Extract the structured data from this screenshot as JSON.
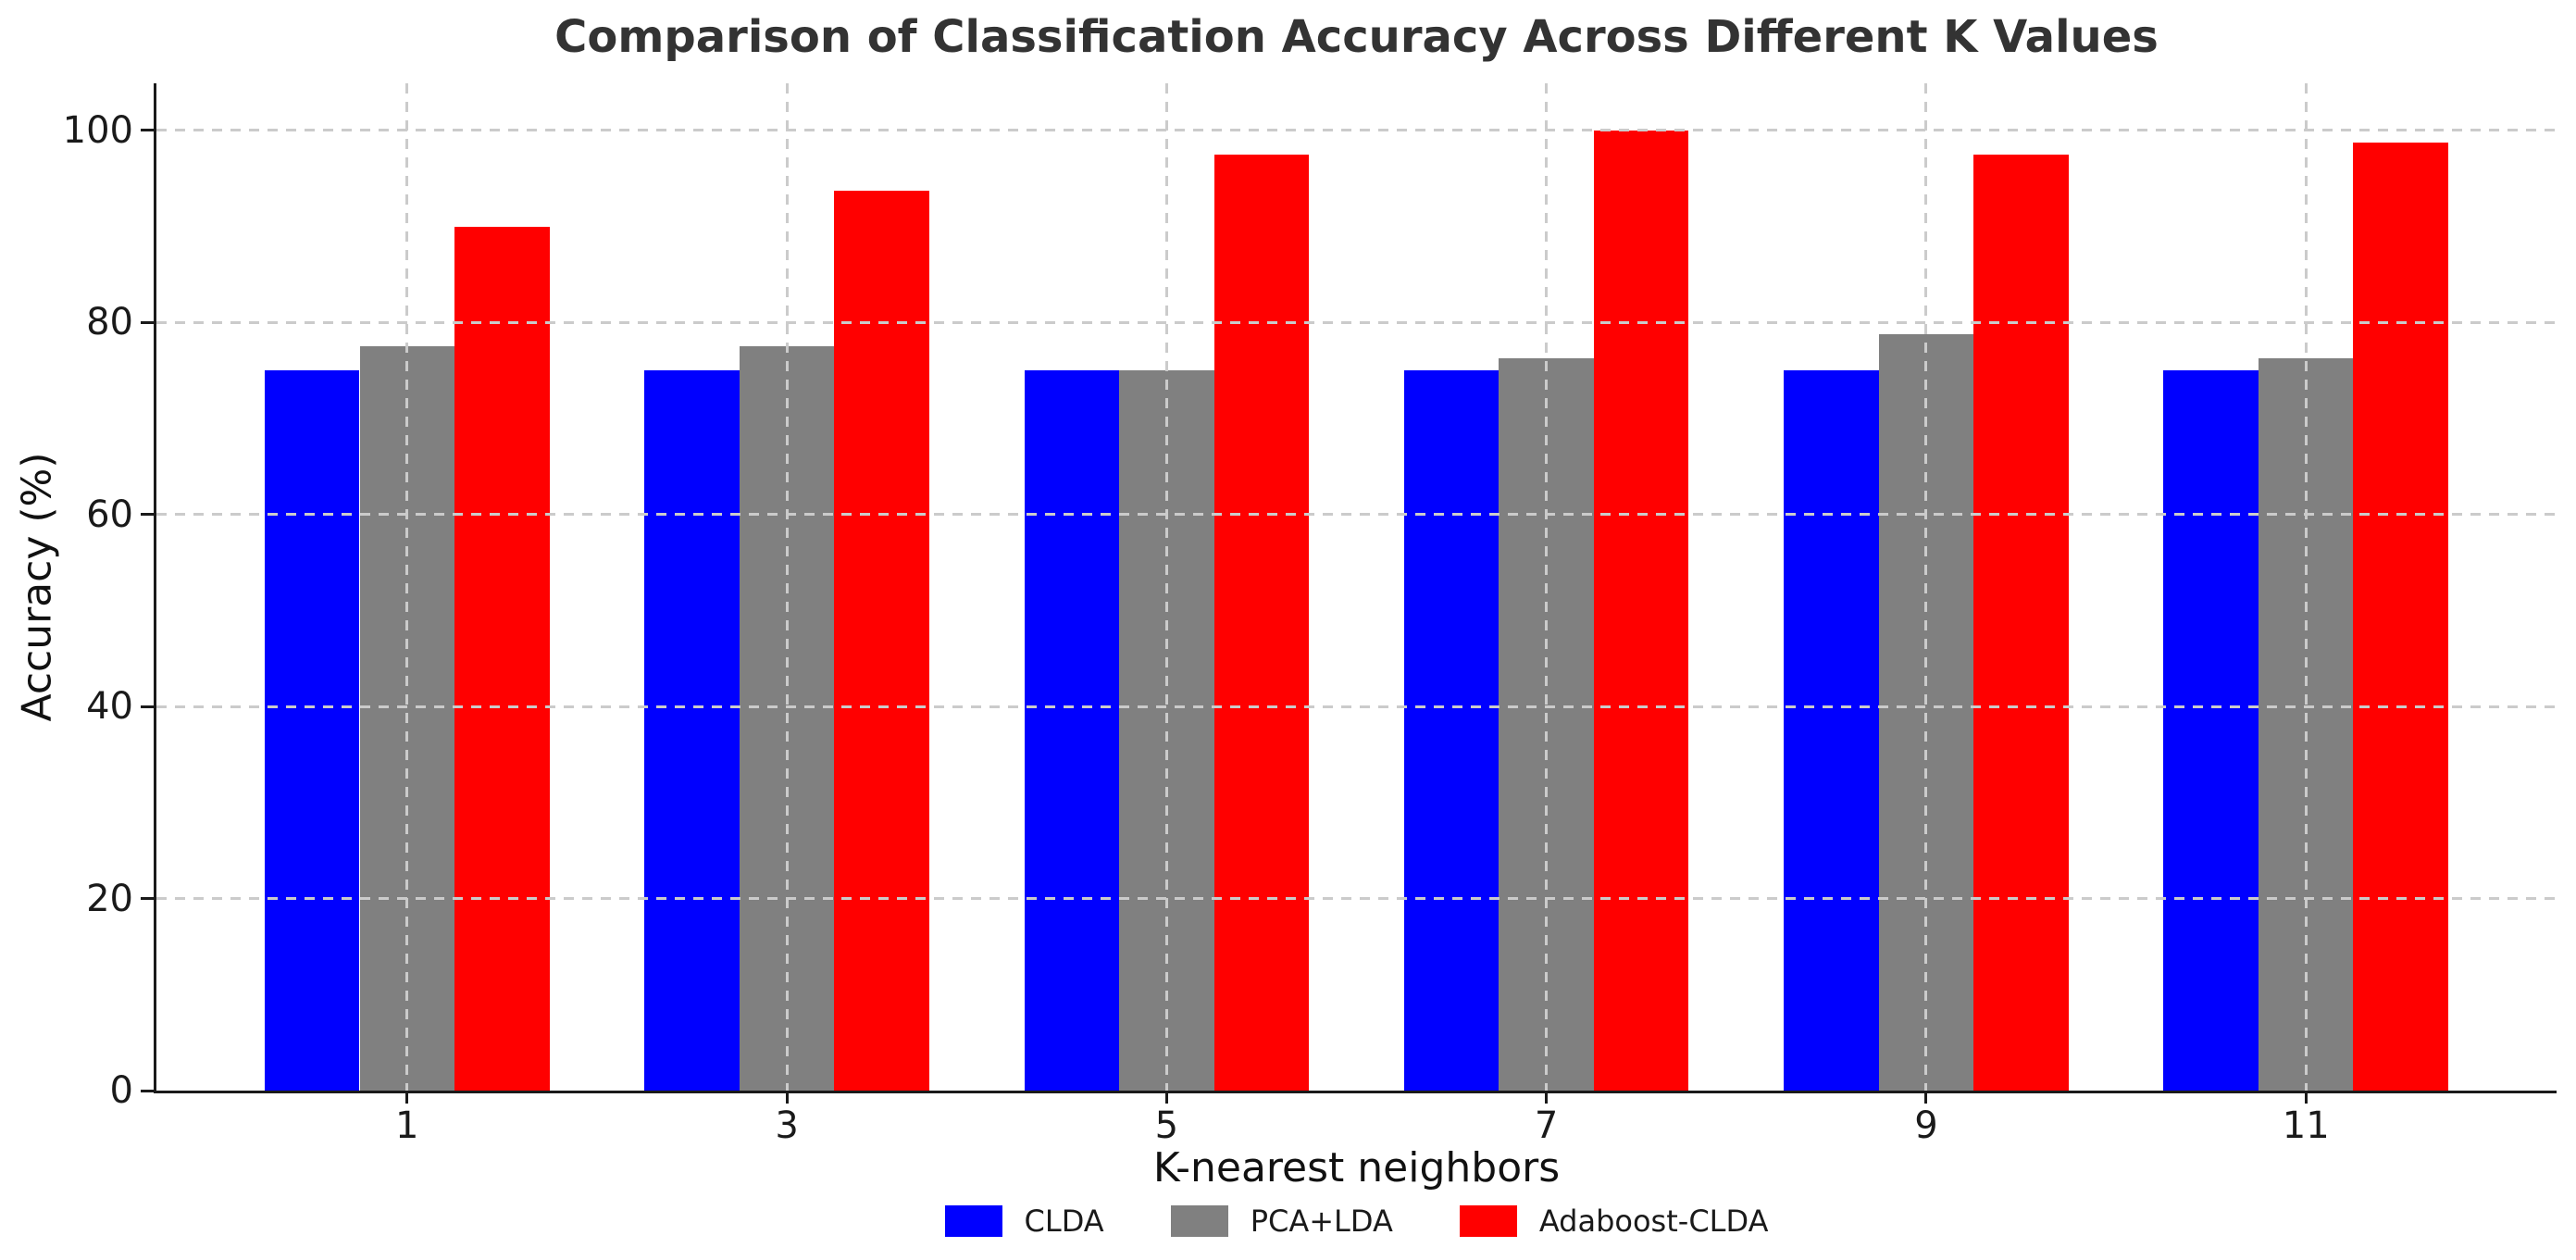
{
  "chart_data": {
    "type": "bar",
    "title": "Comparison of Classification Accuracy Across Different K Values",
    "xlabel": "K-nearest neighbors",
    "ylabel": "Accuracy (%)",
    "categories": [
      "1",
      "3",
      "5",
      "7",
      "9",
      "11"
    ],
    "series": [
      {
        "name": "CLDA",
        "color": "#0000ff",
        "values": [
          75,
          75,
          75,
          75,
          75,
          75
        ]
      },
      {
        "name": "PCA+LDA",
        "color": "#808080",
        "values": [
          77.5,
          77.5,
          75,
          76.25,
          78.75,
          76.25
        ]
      },
      {
        "name": "Adaboost-CLDA",
        "color": "#ff0000",
        "values": [
          90,
          93.75,
          97.5,
          100,
          97.5,
          98.75
        ]
      }
    ],
    "yticks": [
      0,
      20,
      40,
      60,
      80,
      100
    ],
    "ylim": [
      0,
      104.9
    ],
    "grid": true,
    "grid_style": "dashed",
    "grid_above_bars": true,
    "legend_position": "bottom-center",
    "background_color": "#ffffff",
    "axis_color": "#1a1a1a",
    "gridline_color": "#cbcbcb",
    "title_color": "#333333"
  }
}
